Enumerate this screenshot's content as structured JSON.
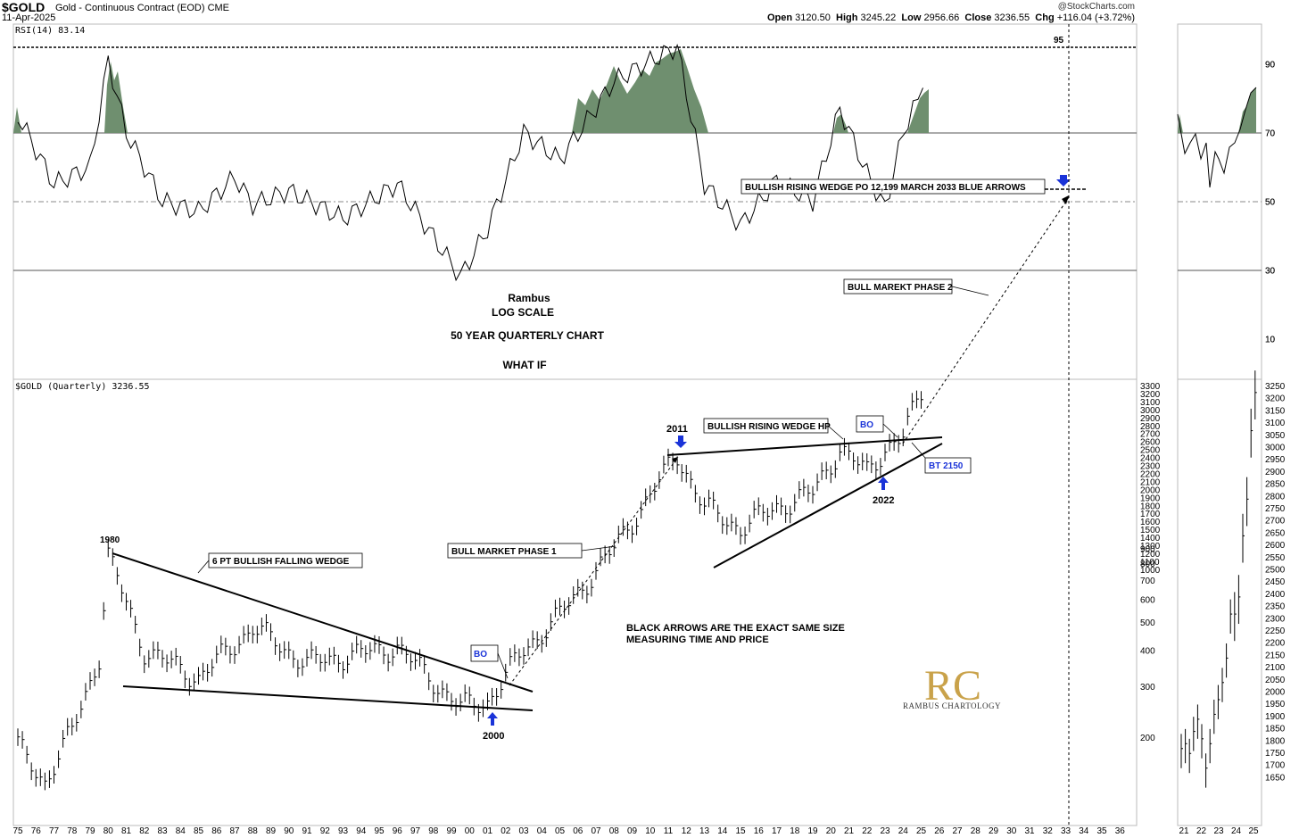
{
  "header": {
    "ticker": "$GOLD",
    "description": "Gold - Continuous Contract (EOD)",
    "exchange": "CME",
    "date": "11-Apr-2025",
    "source": "@StockCharts.com",
    "open_label": "Open",
    "open": "3120.50",
    "high_label": "High",
    "high": "3245.22",
    "low_label": "Low",
    "low": "2956.66",
    "close_label": "Close",
    "close": "3236.55",
    "chg_label": "Chg",
    "chg": "+116.04 (+3.72%)"
  },
  "rsi_panel": {
    "label": "RSI(14) 83.14",
    "marker": "95",
    "ticks": [
      "90",
      "70",
      "50",
      "30",
      "10"
    ],
    "overbought": 70,
    "oversold": 30,
    "fill_color": "#6f8f6f"
  },
  "price_panel": {
    "label": "$GOLD (Quarterly) 3236.55",
    "ticks": [
      "3300",
      "3200",
      "3100",
      "3000",
      "2900",
      "2800",
      "2700",
      "2600",
      "2500",
      "2400",
      "2300",
      "2200",
      "2100",
      "2000",
      "1900",
      "1800",
      "1700",
      "1600",
      "1500",
      "1400",
      "1300",
      "1200",
      "1100",
      "1000",
      "900",
      "800",
      "700",
      "600",
      "500",
      "400",
      "300",
      "200"
    ],
    "x_ticks": [
      "75",
      "76",
      "77",
      "78",
      "79",
      "80",
      "81",
      "82",
      "83",
      "84",
      "85",
      "86",
      "87",
      "88",
      "89",
      "90",
      "91",
      "92",
      "93",
      "94",
      "95",
      "96",
      "97",
      "98",
      "99",
      "00",
      "01",
      "02",
      "03",
      "04",
      "05",
      "06",
      "07",
      "08",
      "09",
      "10",
      "11",
      "12",
      "13",
      "14",
      "15",
      "16",
      "17",
      "18",
      "19",
      "20",
      "21",
      "22",
      "23",
      "24",
      "25",
      "26",
      "27",
      "28",
      "29",
      "30",
      "31",
      "32",
      "33",
      "34",
      "35",
      "36"
    ]
  },
  "side_panel": {
    "rsi_ticks": [
      "90",
      "70",
      "50",
      "30",
      "10"
    ],
    "price_ticks": [
      "3250",
      "3200",
      "3150",
      "3100",
      "3050",
      "3000",
      "2950",
      "2900",
      "2850",
      "2800",
      "2750",
      "2700",
      "2650",
      "2600",
      "2550",
      "2500",
      "2450",
      "2400",
      "2350",
      "2300",
      "2250",
      "2200",
      "2150",
      "2100",
      "2050",
      "2000",
      "1950",
      "1900",
      "1850",
      "1800",
      "1750",
      "1700",
      "1650"
    ],
    "x_ticks": [
      "21",
      "22",
      "23",
      "24",
      "25"
    ]
  },
  "annotations": {
    "rambus": "Rambus",
    "log_scale": "LOG SCALE",
    "fifty_year": "50 YEAR QUARTERLY CHART",
    "what_if": "WHAT IF",
    "falling_wedge": "6 PT BULLISH FALLING WEDGE",
    "year_1980": "1980",
    "year_2000": "2000",
    "year_2011": "2011",
    "year_2022": "2022",
    "bo1": "BO",
    "bo2": "BO",
    "bull_phase1": "BULL MARKET PHASE 1",
    "rising_wedge": "BULLISH RISING WEDGE HP",
    "bt": "BT 2150",
    "black_arrows_1": "BLACK ARROWS ARE THE EXACT SAME SIZE",
    "black_arrows_2": "MEASURING TIME AND PRICE",
    "bull_phase2": "BULL MAREKT PHASE 2",
    "po": "BULLISH RISING WEDGE PO 12,199  MARCH 2033 BLUE ARROWS",
    "logo_letters": "RC",
    "logo_text": "RAMBUS CHARTOLOGY"
  },
  "chart_data": {
    "type": "line",
    "title": "$GOLD Gold - Continuous Contract (EOD) CME",
    "series": [
      {
        "name": "RSI(14)",
        "x": [
          1975,
          1977,
          1979,
          1980,
          1981,
          1983,
          1985,
          1987,
          1988,
          1990,
          1993,
          1996,
          1999.5,
          2001,
          2003,
          2005,
          2008,
          2011.5,
          2013,
          2015,
          2017,
          2019,
          2020.5,
          2022,
          2023,
          2024,
          2025.1
        ],
        "values": [
          75,
          55,
          60,
          91,
          70,
          50,
          47,
          57,
          49,
          53,
          45,
          55,
          28,
          42,
          70,
          62,
          85,
          95,
          55,
          43,
          56,
          50,
          77,
          58,
          48,
          70,
          83
        ]
      },
      {
        "name": "$GOLD (Quarterly)",
        "x": [
          1975,
          1976.5,
          1978,
          1979.5,
          1980,
          1982,
          1985,
          1988,
          1991,
          1993,
          1996,
          1999.5,
          2001,
          2003,
          2005,
          2008,
          2011.5,
          2013,
          2015,
          2017,
          2019,
          2020.5,
          2022,
          2023,
          2024,
          2025.1
        ],
        "values": [
          185,
          140,
          210,
          380,
          850,
          400,
          320,
          480,
          360,
          380,
          410,
          255,
          265,
          400,
          530,
          900,
          1900,
          1250,
          1060,
          1250,
          1400,
          2000,
          1650,
          2000,
          2200,
          3236
        ]
      }
    ],
    "ylim_rsi": [
      0,
      100
    ],
    "ylim_price": [
      140,
      3300
    ],
    "y_scale": "log"
  }
}
